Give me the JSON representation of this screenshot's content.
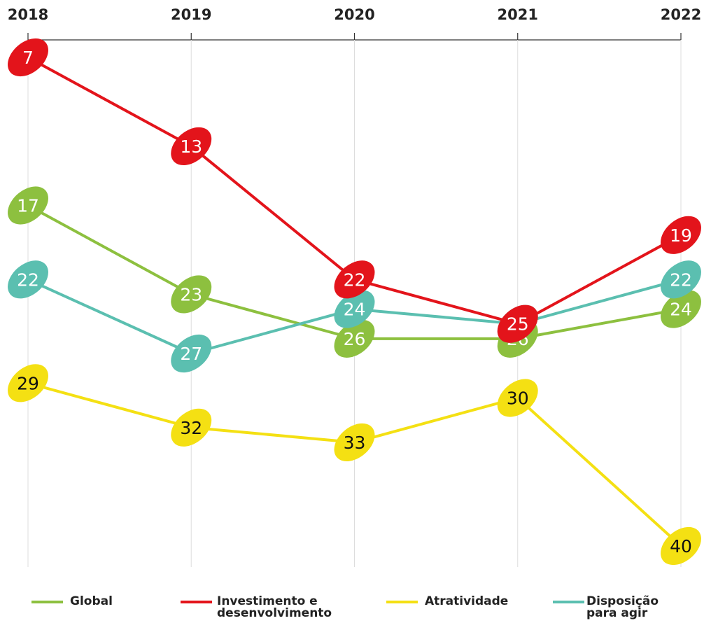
{
  "chart_data": {
    "type": "line",
    "x": [
      "2018",
      "2019",
      "2020",
      "2021",
      "2022"
    ],
    "ylim": [
      7,
      40
    ],
    "y_inverted": true,
    "grid": true,
    "series": [
      {
        "name": "Global",
        "color": "#8dc03f",
        "values": [
          17,
          23,
          26,
          26,
          24
        ]
      },
      {
        "name": "Investimento e desenvolvimento",
        "color": "#e3141b",
        "values": [
          7,
          13,
          22,
          25,
          19
        ]
      },
      {
        "name": "Atratividade",
        "color": "#f4e013",
        "values": [
          29,
          32,
          33,
          30,
          40
        ]
      },
      {
        "name": "Disposição para agir",
        "color": "#5bbfb0",
        "values": [
          22,
          27,
          24,
          25,
          22
        ]
      }
    ]
  }
}
